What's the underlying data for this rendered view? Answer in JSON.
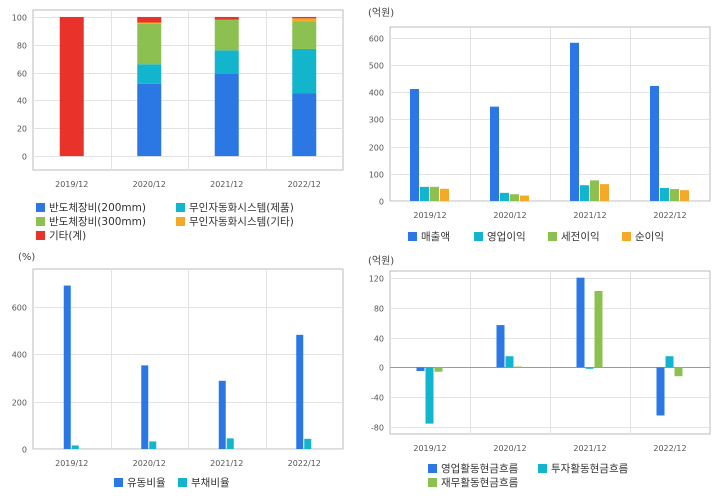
{
  "colors": {
    "blue": "#2b78e4",
    "cyan": "#12b5cb",
    "green": "#8cc152",
    "orange": "#f4a928",
    "red": "#e8322a",
    "grid": "#e3e3e3",
    "frame": "#bbbbbb"
  },
  "chart_data": [
    {
      "type": "bar",
      "stacked": true,
      "unit": "",
      "categories": [
        "2019/12",
        "2020/12",
        "2021/12",
        "2022/12"
      ],
      "ylim": [
        -10,
        105
      ],
      "yticks": [
        0,
        20,
        40,
        60,
        80,
        100
      ],
      "series": [
        {
          "name": "반도체장비(200mm)",
          "color": "#2b78e4",
          "values": [
            0,
            52,
            59,
            45
          ]
        },
        {
          "name": "무인자동화시스템(제품)",
          "color": "#12b5cb",
          "values": [
            0,
            14,
            17,
            32
          ]
        },
        {
          "name": "반도체장비(300mm)",
          "color": "#8cc152",
          "values": [
            0,
            29,
            22,
            20
          ]
        },
        {
          "name": "무인자동화시스템(기타)",
          "color": "#f4a928",
          "values": [
            0,
            1,
            0,
            2
          ]
        },
        {
          "name": "기타(계)",
          "color": "#e8322a",
          "values": [
            100,
            4,
            2,
            1
          ]
        }
      ]
    },
    {
      "type": "bar",
      "unit": "(억원)",
      "categories": [
        "2019/12",
        "2020/12",
        "2021/12",
        "2022/12"
      ],
      "ylim": [
        0,
        640
      ],
      "yticks": [
        0,
        100,
        200,
        300,
        400,
        500,
        600
      ],
      "series": [
        {
          "name": "매출액",
          "color": "#2b78e4",
          "values": [
            412,
            347,
            582,
            423
          ]
        },
        {
          "name": "영업이익",
          "color": "#12b5cb",
          "values": [
            52,
            30,
            58,
            48
          ]
        },
        {
          "name": "세전이익",
          "color": "#8cc152",
          "values": [
            52,
            25,
            76,
            44
          ]
        },
        {
          "name": "순이익",
          "color": "#f4a928",
          "values": [
            45,
            20,
            62,
            40
          ]
        }
      ]
    },
    {
      "type": "bar",
      "unit": "(%)",
      "categories": [
        "2019/12",
        "2020/12",
        "2021/12",
        "2022/12"
      ],
      "ylim": [
        0,
        760
      ],
      "yticks": [
        0,
        200,
        400,
        600
      ],
      "series": [
        {
          "name": "유동비율",
          "color": "#2b78e4",
          "values": [
            690,
            353,
            288,
            482
          ]
        },
        {
          "name": "부채비율",
          "color": "#12b5cb",
          "values": [
            15,
            32,
            45,
            43
          ]
        }
      ]
    },
    {
      "type": "bar",
      "unit": "(억원)",
      "categories": [
        "2019/12",
        "2020/12",
        "2021/12",
        "2022/12"
      ],
      "ylim": [
        -90,
        130
      ],
      "yticks": [
        -80,
        -40,
        0,
        40,
        80,
        120
      ],
      "series": [
        {
          "name": "영업활동현금흐름",
          "color": "#2b78e4",
          "values": [
            -5,
            57,
            121,
            -65
          ]
        },
        {
          "name": "투자활동현금흐름",
          "color": "#12b5cb",
          "values": [
            -76,
            15,
            -2,
            15
          ]
        },
        {
          "name": "재무활동현금흐름",
          "color": "#8cc152",
          "values": [
            -6,
            1,
            103,
            -12
          ]
        }
      ]
    }
  ]
}
